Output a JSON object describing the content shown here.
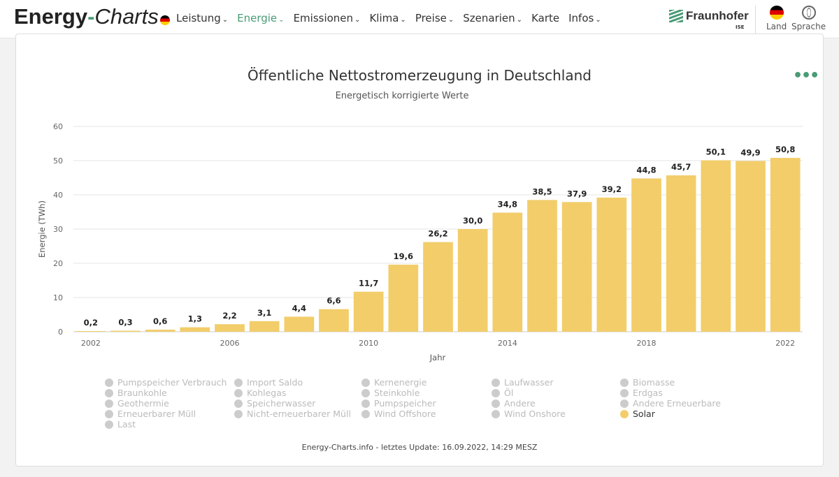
{
  "header": {
    "logo": {
      "part1": "Energy",
      "dash": "-",
      "part2": "Charts"
    },
    "nav": [
      {
        "label": "Leistung"
      },
      {
        "label": "Energie",
        "active": true
      },
      {
        "label": "Emissionen"
      },
      {
        "label": "Klima"
      },
      {
        "label": "Preise"
      },
      {
        "label": "Szenarien"
      },
      {
        "label": "Karte",
        "nochev": true
      },
      {
        "label": "Infos"
      }
    ],
    "brand": "Fraunhofer",
    "brand_sub": "ISE",
    "land": "Land",
    "sprache": "Sprache"
  },
  "colors": {
    "accent": "#4a9b76",
    "bar": "#f2cd6a"
  },
  "chart_data": {
    "type": "bar",
    "title": "Öffentliche Nettostromerzeugung in Deutschland",
    "subtitle": "Energetisch korrigierte Werte",
    "xlabel": "Jahr",
    "ylabel": "Energie (TWh)",
    "ylim": [
      0,
      60
    ],
    "yticks": [
      0,
      10,
      20,
      30,
      40,
      50,
      60
    ],
    "xticks": [
      "2002",
      "2006",
      "2010",
      "2014",
      "2018",
      "2022"
    ],
    "grid": true,
    "categories": [
      "2002",
      "2003",
      "2004",
      "2005",
      "2006",
      "2007",
      "2008",
      "2009",
      "2010",
      "2011",
      "2012",
      "2013",
      "2014",
      "2015",
      "2016",
      "2017",
      "2018",
      "2019",
      "2020",
      "2021",
      "2022"
    ],
    "series": [
      {
        "name": "Solar",
        "values": [
          0.2,
          0.3,
          0.6,
          1.3,
          2.2,
          3.1,
          4.4,
          6.6,
          11.7,
          19.6,
          26.2,
          30.0,
          34.8,
          38.5,
          37.9,
          39.2,
          44.8,
          45.7,
          50.1,
          49.9,
          50.8
        ]
      }
    ],
    "data_labels": [
      "0,2",
      "0,3",
      "0,6",
      "1,3",
      "2,2",
      "3,1",
      "4,4",
      "6,6",
      "11,7",
      "19,6",
      "26,2",
      "30,0",
      "34,8",
      "38,5",
      "37,9",
      "39,2",
      "44,8",
      "45,7",
      "50,1",
      "49,9",
      "50,8"
    ]
  },
  "legend": [
    {
      "label": "Pumpspeicher Verbrauch"
    },
    {
      "label": "Import Saldo"
    },
    {
      "label": "Kernenergie"
    },
    {
      "label": "Laufwasser"
    },
    {
      "label": "Biomasse"
    },
    {
      "label": "Braunkohle"
    },
    {
      "label": "Kohlegas"
    },
    {
      "label": "Steinkohle"
    },
    {
      "label": "Öl"
    },
    {
      "label": "Erdgas"
    },
    {
      "label": "Geothermie"
    },
    {
      "label": "Speicherwasser"
    },
    {
      "label": "Pumpspeicher"
    },
    {
      "label": "Andere"
    },
    {
      "label": "Andere Erneuerbare"
    },
    {
      "label": "Erneuerbarer Müll"
    },
    {
      "label": "Nicht-erneuerbarer Müll"
    },
    {
      "label": "Wind Offshore"
    },
    {
      "label": "Wind Onshore"
    },
    {
      "label": "Solar",
      "active": true
    },
    {
      "label": "Last"
    }
  ],
  "footer": "Energy-Charts.info - letztes Update: 16.09.2022, 14:29 MESZ"
}
